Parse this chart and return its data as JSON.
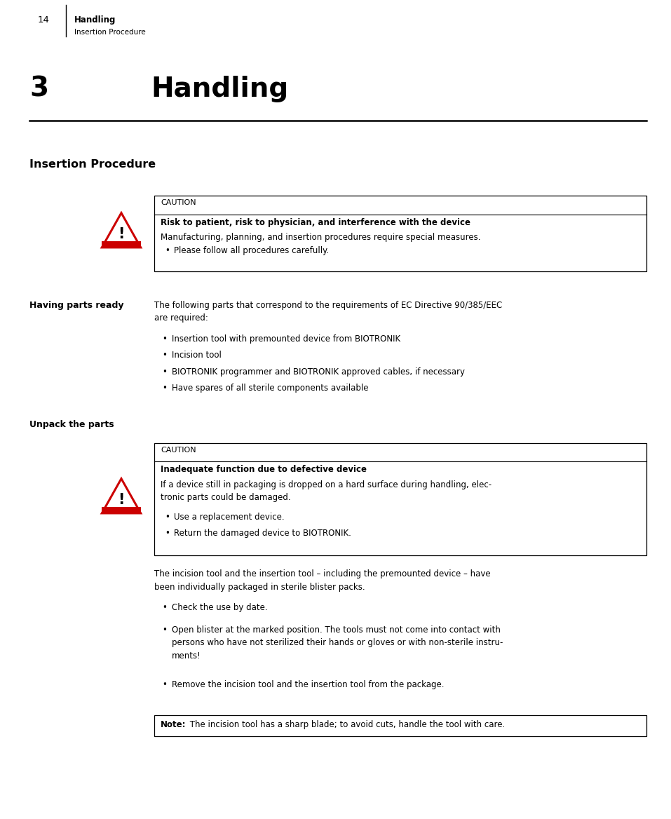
{
  "bg_color": "#ffffff",
  "page_width": 9.57,
  "page_height": 11.68,
  "dpi": 100,
  "ml": 0.42,
  "mr": 0.35,
  "cl": 2.25,
  "header_page_num": "14",
  "header_bold": "Handling",
  "header_sub": "Insertion Procedure",
  "chapter_num": "3",
  "chapter_title": "Handling",
  "section_title": "Insertion Procedure",
  "caution1_label": "CAUTION",
  "caution1_bold": "Risk to patient, risk to physician, and interference with the device",
  "caution1_text": "Manufacturing, planning, and insertion procedures require special measures.",
  "caution1_bullet": "Please follow all procedures carefully.",
  "having_parts_label": "Having parts ready",
  "having_parts_intro": "The following parts that correspond to the requirements of EC Directive 90/385/EEC\nare required:",
  "having_parts_bullets": [
    "Insertion tool with premounted device from BIOTRONIK",
    "Incision tool",
    "BIOTRONIK programmer and BIOTRONIK approved cables, if necessary",
    "Have spares of all sterile components available"
  ],
  "unpack_label": "Unpack the parts",
  "caution2_label": "CAUTION",
  "caution2_bold": "Inadequate function due to defective device",
  "caution2_text": "If a device still in packaging is dropped on a hard surface during handling, elec-\ntronic parts could be damaged.",
  "caution2_bullets": [
    "Use a replacement device.",
    "Return the damaged device to BIOTRONIK."
  ],
  "unpack_text1": "The incision tool and the insertion tool – including the premounted device – have\nbeen individually packaged in sterile blister packs.",
  "unpack_bullets": [
    "Check the use by date.",
    "Open blister at the marked position. The tools must not come into contact with\npersons who have not sterilized their hands or gloves or with non-sterile instru-\nments!",
    "Remove the incision tool and the insertion tool from the package."
  ],
  "note_bold": "Note:",
  "note_text": " The incision tool has a sharp blade; to avoid cuts, handle the tool with care."
}
